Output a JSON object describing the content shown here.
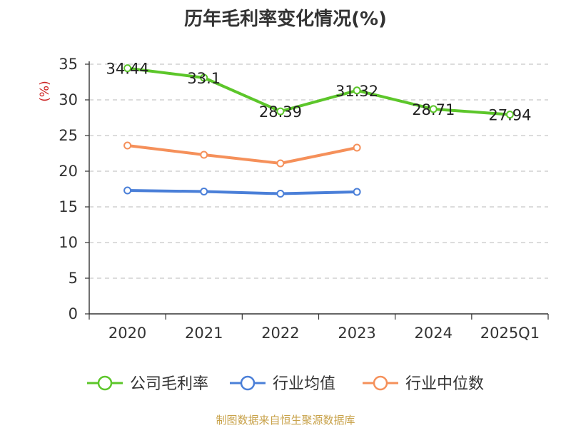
{
  "title": "历年毛利率变化情况(%)",
  "source": "制图数据来自恒生聚源数据库",
  "chart_data": {
    "type": "line",
    "title": "历年毛利率变化情况(%)",
    "ylabel": "(%)",
    "xlabel": "",
    "ylim": [
      0,
      35
    ],
    "yticks": [
      "0",
      "5",
      "10",
      "15",
      "20",
      "25",
      "30",
      "35"
    ],
    "categories": [
      "2020",
      "2021",
      "2022",
      "2023",
      "2024",
      "2025Q1"
    ],
    "grid": true,
    "legend_position": "bottom",
    "series": [
      {
        "name": "公司毛利率",
        "color": "#5cc62a",
        "values": [
          34.44,
          33.1,
          28.39,
          31.32,
          28.71,
          27.94
        ],
        "labels": [
          "34.44",
          "33.1",
          "28.39",
          "31.32",
          "28.71",
          "27.94"
        ]
      },
      {
        "name": "行业均值",
        "color": "#4a7fd8",
        "values": [
          17.3,
          17.15,
          16.85,
          17.1,
          null,
          null
        ]
      },
      {
        "name": "行业中位数",
        "color": "#f5905a",
        "values": [
          23.6,
          22.3,
          21.1,
          23.3,
          null,
          null
        ]
      }
    ]
  }
}
